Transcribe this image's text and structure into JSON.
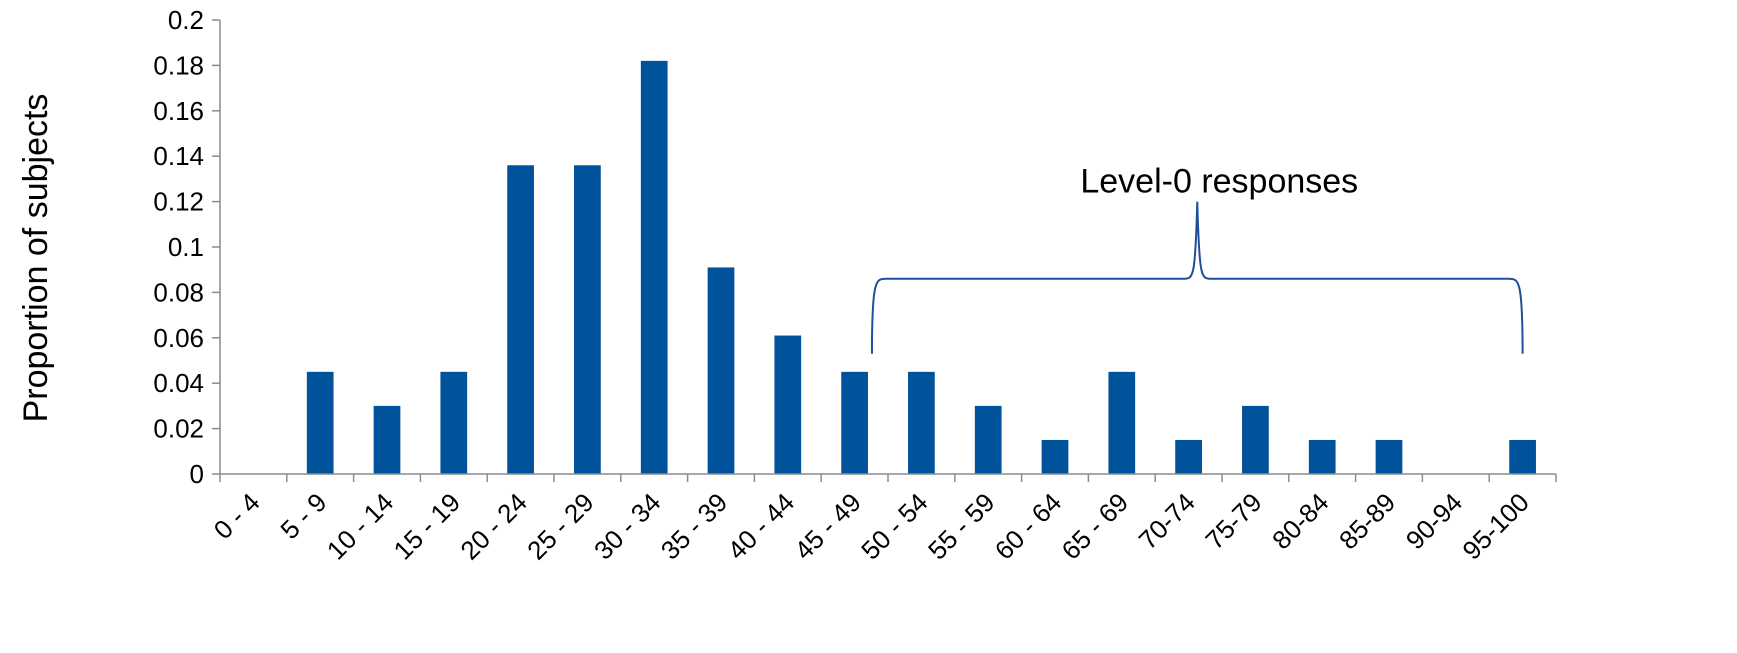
{
  "chart_data": {
    "type": "bar",
    "categories": [
      "0 - 4",
      "5 - 9",
      "10 - 14",
      "15 - 19",
      "20 - 24",
      "25 - 29",
      "30 - 34",
      "35 - 39",
      "40 - 44",
      "45 - 49",
      "50 - 54",
      "55 - 59",
      "60 - 64",
      "65 - 69",
      "70-74",
      "75-79",
      "80-84",
      "85-89",
      "90-94",
      "95-100"
    ],
    "values": [
      0,
      0.045,
      0.03,
      0.045,
      0.136,
      0.136,
      0.182,
      0.091,
      0.061,
      0.045,
      0.045,
      0.03,
      0.015,
      0.045,
      0.015,
      0.03,
      0.015,
      0.015,
      0,
      0.015
    ],
    "title": "",
    "xlabel": "",
    "ylabel": "Proportion of subjects",
    "ylim": [
      0,
      0.2
    ],
    "yticks": [
      "0",
      "0.02",
      "0.04",
      "0.06",
      "0.08",
      "0.1",
      "0.12",
      "0.14",
      "0.16",
      "0.18",
      "0.2"
    ],
    "bar_color": "#00539b",
    "grid": false,
    "legend": "none",
    "annotation": {
      "text": "Level-0 responses",
      "from_category": "45 - 49",
      "to_category": "95-100"
    }
  }
}
